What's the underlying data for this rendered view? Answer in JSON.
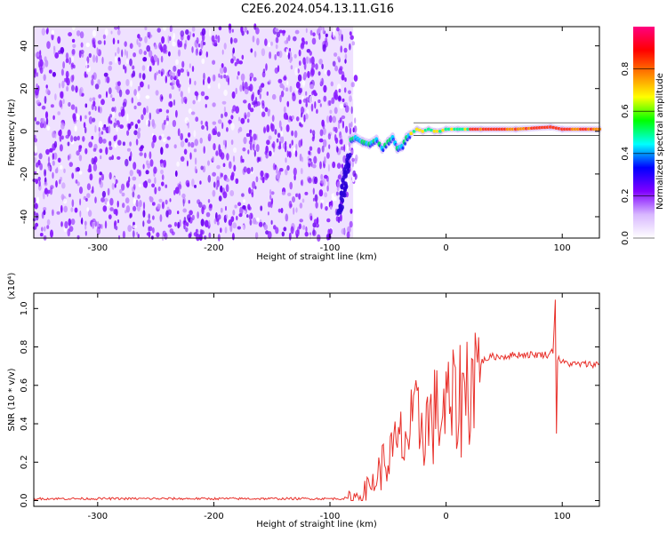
{
  "figure_title": "C2E6.2024.054.13.11.G16",
  "chart_data": [
    {
      "type": "heatmap",
      "xlabel": "Height of straight line (km)",
      "ylabel": "Frequency (Hz)",
      "xlim": [
        -355,
        132
      ],
      "ylim": [
        -50,
        49
      ],
      "xticks": [
        -300,
        -200,
        -100,
        0,
        100
      ],
      "yticks": [
        -40,
        -20,
        0,
        20,
        40
      ],
      "noise_region_x": [
        -355,
        -80
      ],
      "signal_trace": [
        {
          "x": -82,
          "f": -4
        },
        {
          "x": -78,
          "f": -3
        },
        {
          "x": -72,
          "f": -5
        },
        {
          "x": -66,
          "f": -6
        },
        {
          "x": -60,
          "f": -4
        },
        {
          "x": -55,
          "f": -8
        },
        {
          "x": -50,
          "f": -5
        },
        {
          "x": -46,
          "f": -3
        },
        {
          "x": -42,
          "f": -8
        },
        {
          "x": -38,
          "f": -7
        },
        {
          "x": -34,
          "f": -3
        },
        {
          "x": -30,
          "f": -1
        },
        {
          "x": -25,
          "f": 1
        },
        {
          "x": -20,
          "f": 0
        },
        {
          "x": -15,
          "f": 1
        },
        {
          "x": -10,
          "f": 0
        },
        {
          "x": -5,
          "f": 0
        },
        {
          "x": 0,
          "f": 1
        },
        {
          "x": 10,
          "f": 1
        },
        {
          "x": 30,
          "f": 1
        },
        {
          "x": 60,
          "f": 1
        },
        {
          "x": 90,
          "f": 2
        },
        {
          "x": 100,
          "f": 1
        },
        {
          "x": 132,
          "f": 1
        }
      ],
      "colorbar": {
        "label": "Normalized spectral amplitude",
        "range": [
          0,
          1
        ],
        "ticks": [
          "0.0",
          "0.2",
          "0.4",
          "0.6",
          "0.8"
        ],
        "tick_values": [
          0,
          0.2,
          0.4,
          0.6,
          0.8
        ],
        "colormap": [
          "#ffffff",
          "#d8b8ff",
          "#7f00ff",
          "#0000ff",
          "#00ffff",
          "#00ff00",
          "#ffff00",
          "#ff8000",
          "#ff0000",
          "#ff0080"
        ]
      }
    },
    {
      "type": "line",
      "xlabel": "Height of straight line (km)",
      "ylabel": "SNR (10 * v/v)",
      "y_multiplier": "(x10⁴)",
      "xlim": [
        -355,
        132
      ],
      "ylim": [
        -0.03,
        1.08
      ],
      "xticks": [
        -300,
        -200,
        -100,
        0,
        100
      ],
      "yticks": [
        0.0,
        0.2,
        0.4,
        0.6,
        0.8,
        1.0
      ],
      "ytick_labels": [
        "0.0",
        "0.2",
        "0.4",
        "0.6",
        "0.8",
        "1.0"
      ],
      "color": "#e8302a",
      "series": [
        {
          "x": [
            -355,
            -300,
            -250,
            -200,
            -150,
            -100,
            -90,
            -80,
            -75,
            -70,
            -65,
            -60,
            -55,
            -50,
            -45,
            -40,
            -35,
            -30,
            -25,
            -20,
            -15,
            -10,
            -5,
            0,
            5,
            10,
            15,
            20,
            25,
            30,
            35,
            40,
            50,
            60,
            70,
            80,
            88,
            92,
            94,
            95,
            96,
            100,
            110,
            120,
            132
          ],
          "values": [
            0.01,
            0.01,
            0.01,
            0.01,
            0.01,
            0.01,
            0.01,
            0.015,
            0.03,
            0.05,
            0.08,
            0.12,
            0.18,
            0.22,
            0.25,
            0.3,
            0.32,
            0.36,
            0.4,
            0.42,
            0.4,
            0.44,
            0.45,
            0.47,
            0.48,
            0.52,
            0.56,
            0.62,
            0.68,
            0.72,
            0.74,
            0.75,
            0.75,
            0.76,
            0.76,
            0.76,
            0.76,
            0.78,
            1.05,
            0.35,
            0.74,
            0.72,
            0.71,
            0.71,
            0.71
          ]
        }
      ]
    }
  ]
}
